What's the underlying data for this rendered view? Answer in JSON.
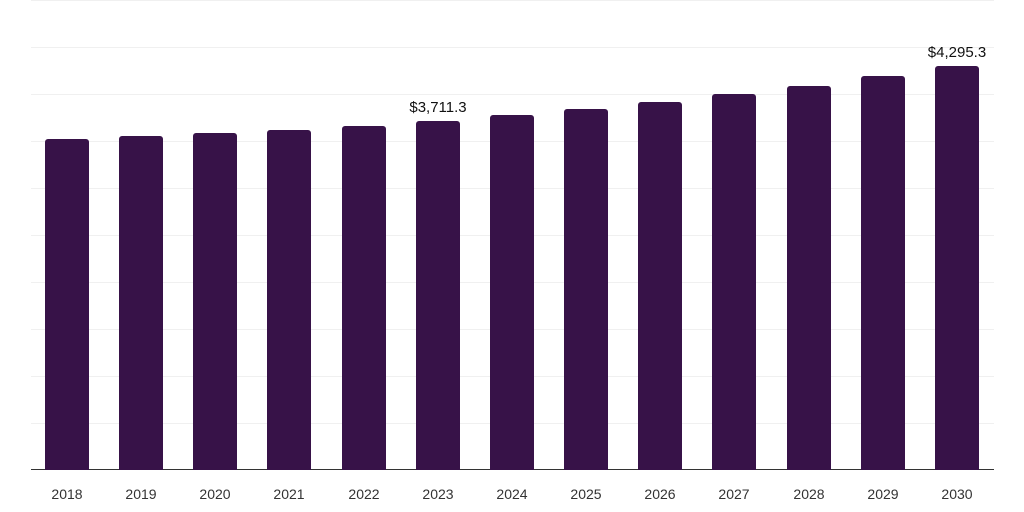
{
  "chart_data": {
    "type": "bar",
    "title": "",
    "xlabel": "",
    "ylabel": "",
    "categories": [
      "2018",
      "2019",
      "2020",
      "2021",
      "2022",
      "2023",
      "2024",
      "2025",
      "2026",
      "2027",
      "2028",
      "2029",
      "2030"
    ],
    "values": [
      3518,
      3550,
      3582,
      3614,
      3656,
      3711.3,
      3774,
      3838,
      3912,
      3998,
      4083,
      4190,
      4295.3
    ],
    "data_labels": [
      {
        "category": "2023",
        "text": "$3,711.3"
      },
      {
        "category": "2030",
        "text": "$4,295.3"
      }
    ],
    "ylim": [
      0,
      5000
    ],
    "grid": true,
    "grid_step": 500,
    "legend": null,
    "bar_color": "#371248"
  }
}
